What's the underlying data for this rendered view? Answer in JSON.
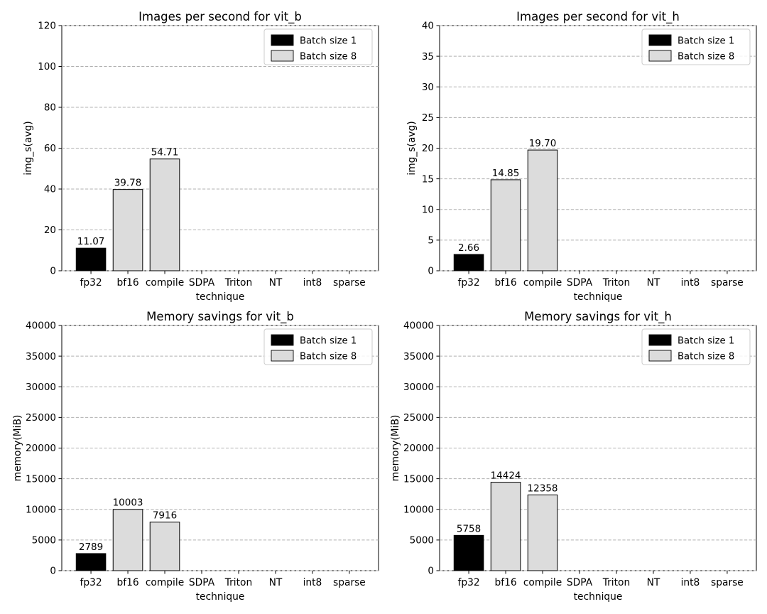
{
  "figure": {
    "background": "#ffffff",
    "x_label": "technique",
    "categories": [
      "fp32",
      "bf16",
      "compile",
      "SDPA",
      "Triton",
      "NT",
      "int8",
      "sparse"
    ],
    "legend": {
      "position": "upper right",
      "items": [
        {
          "label": "Batch size 1",
          "color": "#000000"
        },
        {
          "label": "Batch size 8",
          "color": "#dcdcdc"
        }
      ]
    },
    "colors": {
      "batch1_fill": "#000000",
      "batch8_fill": "#dcdcdc",
      "bar_edge": "#000000",
      "grid": "#b0b0b0",
      "axis": "#000000",
      "legend_border": "#cccccc",
      "text": "#000000"
    }
  },
  "chart_data": [
    {
      "type": "bar",
      "title": "Images per second for vit_b",
      "xlabel": "technique",
      "ylabel": "img_s(avg)",
      "ylim": [
        0,
        120
      ],
      "yticks": [
        0,
        20,
        40,
        60,
        80,
        100,
        120
      ],
      "ytick_labels": [
        "0",
        "20",
        "40",
        "60",
        "80",
        "100",
        "120"
      ],
      "categories": [
        "fp32",
        "bf16",
        "compile",
        "SDPA",
        "Triton",
        "NT",
        "int8",
        "sparse"
      ],
      "grid": "dashed-horizontal",
      "legend_position": "upper right",
      "series": [
        {
          "name": "Batch size 1",
          "color": "#000000",
          "values": [
            11.07,
            null,
            null,
            null,
            null,
            null,
            null,
            null
          ],
          "labels": [
            "11.07",
            null,
            null,
            null,
            null,
            null,
            null,
            null
          ]
        },
        {
          "name": "Batch size 8",
          "color": "#dcdcdc",
          "values": [
            null,
            39.78,
            54.71,
            null,
            null,
            null,
            null,
            null
          ],
          "labels": [
            null,
            "39.78",
            "54.71",
            null,
            null,
            null,
            null,
            null
          ]
        }
      ]
    },
    {
      "type": "bar",
      "title": "Images per second for vit_h",
      "xlabel": "technique",
      "ylabel": "img_s(avg)",
      "ylim": [
        0,
        40
      ],
      "yticks": [
        0,
        5,
        10,
        15,
        20,
        25,
        30,
        35,
        40
      ],
      "ytick_labels": [
        "0",
        "5",
        "10",
        "15",
        "20",
        "25",
        "30",
        "35",
        "40"
      ],
      "categories": [
        "fp32",
        "bf16",
        "compile",
        "SDPA",
        "Triton",
        "NT",
        "int8",
        "sparse"
      ],
      "grid": "dashed-horizontal",
      "legend_position": "upper right",
      "series": [
        {
          "name": "Batch size 1",
          "color": "#000000",
          "values": [
            2.66,
            null,
            null,
            null,
            null,
            null,
            null,
            null
          ],
          "labels": [
            "2.66",
            null,
            null,
            null,
            null,
            null,
            null,
            null
          ]
        },
        {
          "name": "Batch size 8",
          "color": "#dcdcdc",
          "values": [
            null,
            14.85,
            19.7,
            null,
            null,
            null,
            null,
            null
          ],
          "labels": [
            null,
            "14.85",
            "19.70",
            null,
            null,
            null,
            null,
            null
          ]
        }
      ]
    },
    {
      "type": "bar",
      "title": "Memory savings for vit_b",
      "xlabel": "technique",
      "ylabel": "memory(MiB)",
      "ylim": [
        0,
        40000
      ],
      "yticks": [
        0,
        5000,
        10000,
        15000,
        20000,
        25000,
        30000,
        35000,
        40000
      ],
      "ytick_labels": [
        "0",
        "5000",
        "10000",
        "15000",
        "20000",
        "25000",
        "30000",
        "35000",
        "40000"
      ],
      "categories": [
        "fp32",
        "bf16",
        "compile",
        "SDPA",
        "Triton",
        "NT",
        "int8",
        "sparse"
      ],
      "grid": "dashed-horizontal",
      "legend_position": "upper right",
      "series": [
        {
          "name": "Batch size 1",
          "color": "#000000",
          "values": [
            2789,
            null,
            null,
            null,
            null,
            null,
            null,
            null
          ],
          "labels": [
            "2789",
            null,
            null,
            null,
            null,
            null,
            null,
            null
          ]
        },
        {
          "name": "Batch size 8",
          "color": "#dcdcdc",
          "values": [
            null,
            10003,
            7916,
            null,
            null,
            null,
            null,
            null
          ],
          "labels": [
            null,
            "10003",
            "7916",
            null,
            null,
            null,
            null,
            null
          ]
        }
      ]
    },
    {
      "type": "bar",
      "title": "Memory savings for vit_h",
      "xlabel": "technique",
      "ylabel": "memory(MiB)",
      "ylim": [
        0,
        40000
      ],
      "yticks": [
        0,
        5000,
        10000,
        15000,
        20000,
        25000,
        30000,
        35000,
        40000
      ],
      "ytick_labels": [
        "0",
        "5000",
        "10000",
        "15000",
        "20000",
        "25000",
        "30000",
        "35000",
        "40000"
      ],
      "categories": [
        "fp32",
        "bf16",
        "compile",
        "SDPA",
        "Triton",
        "NT",
        "int8",
        "sparse"
      ],
      "grid": "dashed-horizontal",
      "legend_position": "upper right",
      "series": [
        {
          "name": "Batch size 1",
          "color": "#000000",
          "values": [
            5758,
            null,
            null,
            null,
            null,
            null,
            null,
            null
          ],
          "labels": [
            "5758",
            null,
            null,
            null,
            null,
            null,
            null,
            null
          ]
        },
        {
          "name": "Batch size 8",
          "color": "#dcdcdc",
          "values": [
            null,
            14424,
            12358,
            null,
            null,
            null,
            null,
            null
          ],
          "labels": [
            null,
            "14424",
            "12358",
            null,
            null,
            null,
            null,
            null
          ]
        }
      ]
    }
  ]
}
